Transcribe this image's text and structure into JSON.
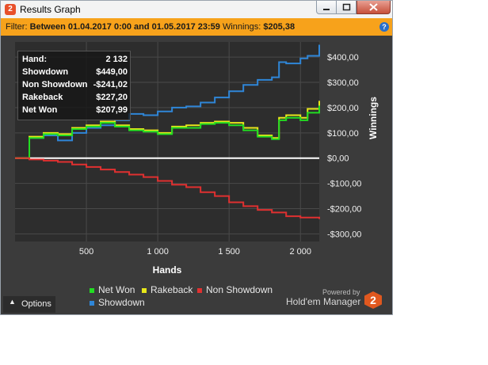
{
  "window": {
    "title": "Results Graph"
  },
  "filter": {
    "label": "Filter:",
    "range": "Between 01.04.2017 0:00 and 01.05.2017 23:59",
    "winnings_label": "Winnings:",
    "winnings_value": "$205,38"
  },
  "stats": [
    {
      "label": "Hand:",
      "value": "2 132"
    },
    {
      "label": "Showdown",
      "value": "$449,00"
    },
    {
      "label": "Non Showdown",
      "value": "-$241,02"
    },
    {
      "label": "Rakeback",
      "value": "$227,20"
    },
    {
      "label": "Net Won",
      "value": "$207,99"
    }
  ],
  "legend": [
    {
      "name": "Net Won",
      "color": "#22dd22"
    },
    {
      "name": "Rakeback",
      "color": "#e8e81a"
    },
    {
      "name": "Non Showdown",
      "color": "#e03030"
    },
    {
      "name": "Showdown",
      "color": "#2f86d8"
    }
  ],
  "options_label": "Options",
  "powered_by": "Powered by",
  "brand": "Hold'em Manager",
  "brand_logo_text": "2",
  "chart_data": {
    "type": "line",
    "xlabel": "Hands",
    "ylabel": "Winnings",
    "xlim": [
      0,
      2132
    ],
    "ylim": [
      -330,
      460
    ],
    "x_ticks": [
      500,
      1000,
      1500,
      2000
    ],
    "x_tick_labels": [
      "500",
      "1 000",
      "1 500",
      "2 000"
    ],
    "y_ticks": [
      400,
      300,
      200,
      100,
      0,
      -100,
      -200,
      -300
    ],
    "y_tick_labels": [
      "$400,00",
      "$300,00",
      "$200,00",
      "$100,00",
      "$0,00",
      "-$100,00",
      "-$200,00",
      "-$300,00"
    ],
    "grid": true,
    "legend_position": "bottom",
    "series": [
      {
        "name": "Showdown",
        "color": "#2f86d8",
        "x": [
          0,
          100,
          200,
          300,
          400,
          500,
          600,
          700,
          800,
          900,
          1000,
          1100,
          1200,
          1300,
          1400,
          1500,
          1600,
          1700,
          1800,
          1850,
          1900,
          2000,
          2050,
          2132
        ],
        "y": [
          0,
          80,
          90,
          70,
          100,
          120,
          130,
          150,
          175,
          170,
          185,
          200,
          205,
          220,
          240,
          265,
          290,
          310,
          320,
          380,
          375,
          395,
          405,
          449
        ]
      },
      {
        "name": "Rakeback",
        "color": "#e8e81a",
        "x": [
          0,
          100,
          200,
          300,
          400,
          500,
          600,
          700,
          800,
          900,
          1000,
          1100,
          1200,
          1300,
          1400,
          1500,
          1600,
          1700,
          1800,
          1850,
          1900,
          2000,
          2050,
          2132
        ],
        "y": [
          0,
          85,
          100,
          95,
          120,
          130,
          145,
          130,
          115,
          110,
          100,
          125,
          130,
          140,
          145,
          140,
          120,
          90,
          80,
          160,
          170,
          160,
          195,
          227
        ]
      },
      {
        "name": "Net Won",
        "color": "#22dd22",
        "x": [
          0,
          100,
          200,
          300,
          400,
          500,
          600,
          700,
          800,
          900,
          1000,
          1100,
          1200,
          1300,
          1400,
          1500,
          1600,
          1700,
          1800,
          1850,
          1900,
          2000,
          2050,
          2132
        ],
        "y": [
          0,
          80,
          95,
          90,
          115,
          125,
          140,
          125,
          110,
          105,
          95,
          120,
          120,
          135,
          140,
          130,
          110,
          85,
          75,
          150,
          160,
          150,
          180,
          208
        ]
      },
      {
        "name": "Non Showdown",
        "color": "#e03030",
        "x": [
          0,
          100,
          200,
          300,
          400,
          500,
          600,
          700,
          800,
          900,
          1000,
          1100,
          1200,
          1300,
          1400,
          1500,
          1600,
          1700,
          1800,
          1900,
          2000,
          2132
        ],
        "y": [
          0,
          -5,
          -10,
          -15,
          -25,
          -35,
          -45,
          -55,
          -65,
          -75,
          -90,
          -105,
          -115,
          -135,
          -150,
          -175,
          -190,
          -205,
          -215,
          -230,
          -235,
          -241
        ]
      }
    ]
  }
}
